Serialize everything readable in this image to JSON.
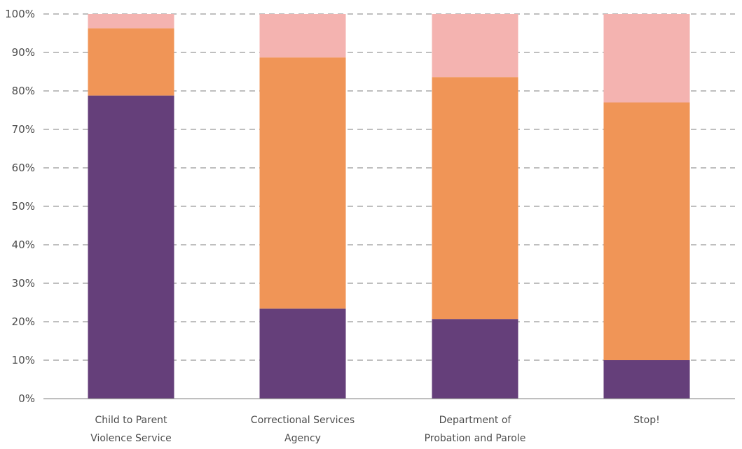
{
  "chart_data": {
    "type": "bar",
    "stacked": true,
    "categories": [
      [
        "Child to Parent",
        "Violence Service"
      ],
      [
        "Correctional Services",
        "Agency"
      ],
      [
        "Department of",
        "Probation and Parole"
      ],
      [
        "Stop!"
      ]
    ],
    "series": [
      {
        "color": "#653f7a",
        "values": [
          78.8,
          23.4,
          20.7,
          10.0
        ]
      },
      {
        "color": "#f09557",
        "values": [
          17.5,
          65.3,
          62.9,
          67.0
        ]
      },
      {
        "color": "#f4b3b0",
        "values": [
          3.7,
          11.3,
          16.4,
          23.0
        ]
      }
    ],
    "ylim": [
      0,
      100
    ],
    "yticks": [
      "0%",
      "10%",
      "20%",
      "30%",
      "40%",
      "50%",
      "60%",
      "70%",
      "80%",
      "90%",
      "100%"
    ],
    "grid": true,
    "xlabel": "",
    "ylabel": "",
    "title": ""
  }
}
